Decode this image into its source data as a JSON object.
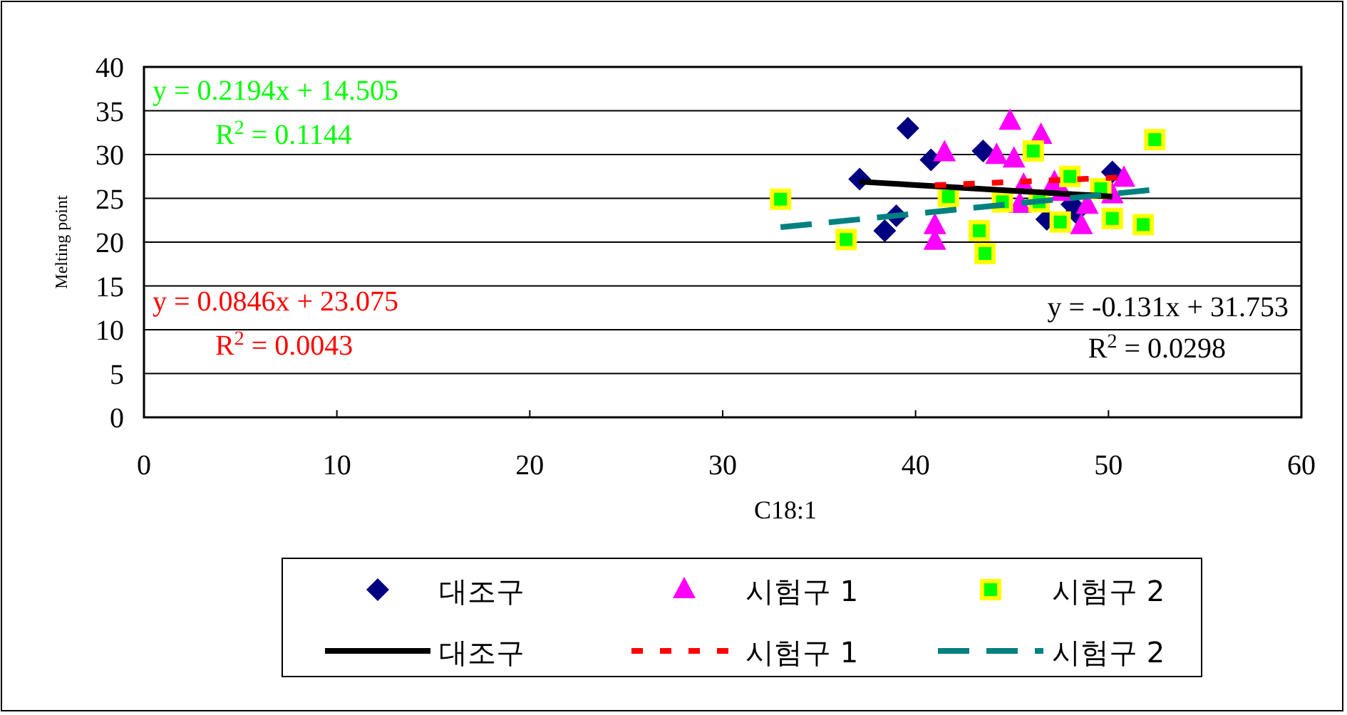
{
  "chart_data": {
    "type": "scatter",
    "xlabel": "C18:1",
    "ylabel": "Melting point",
    "xlim": [
      0,
      60
    ],
    "ylim": [
      0,
      40
    ],
    "xticks": [
      0,
      10,
      20,
      30,
      40,
      50,
      60
    ],
    "yticks": [
      0,
      5,
      10,
      15,
      20,
      25,
      30,
      35,
      40
    ],
    "grid": "y",
    "legend": "bottom",
    "annotations": [
      "y = 0.2194x + 14.505",
      "R$^{2}$ = 0.1144",
      "y = 0.0846x + 23.075",
      "R$^{2}$ = 0.0043",
      "y = -0.131x + 31.753",
      "R$^{2}$ = 0.0298"
    ],
    "series": [
      {
        "name": "대조구",
        "marker": "diamond",
        "color": "#000080",
        "x": [
          37.1,
          39.6,
          40.8,
          39.0,
          38.4,
          43.5,
          46.8,
          48.1,
          48.3,
          50.2
        ],
        "values": [
          27.2,
          33.0,
          29.4,
          23.0,
          21.3,
          30.4,
          22.6,
          24.3,
          23.4,
          28.0
        ]
      },
      {
        "name": "시험구 1",
        "marker": "triangle",
        "color": "#ff00ff",
        "x": [
          44.9,
          46.5,
          41.5,
          44.2,
          45.1,
          45.6,
          47.2,
          45.4,
          41.0,
          41.0,
          48.6,
          48.9,
          50.8,
          50.2,
          47.6
        ],
        "values": [
          33.8,
          32.2,
          30.2,
          29.9,
          29.5,
          26.5,
          26.8,
          24.3,
          21.9,
          20.1,
          21.9,
          24.2,
          27.3,
          25.4,
          25.7
        ]
      },
      {
        "name": "시험구 2",
        "marker": "square",
        "color": "#00ff00",
        "x": [
          33.0,
          36.4,
          41.7,
          43.3,
          43.6,
          44.5,
          46.1,
          46.4,
          47.5,
          48.0,
          49.6,
          50.2,
          51.8,
          52.4
        ],
        "values": [
          24.9,
          20.3,
          25.2,
          21.3,
          18.7,
          24.6,
          30.4,
          24.6,
          22.3,
          27.5,
          26.1,
          22.7,
          22.0,
          31.7
        ]
      },
      {
        "name": "대조구",
        "type": "line",
        "line_style": "solid",
        "color": "#000000",
        "x": [
          37.1,
          50.2
        ],
        "values": [
          26.9,
          25.2
        ]
      },
      {
        "name": "시험구 1",
        "type": "line",
        "line_style": "dotted",
        "color": "#ff0000",
        "x": [
          41.0,
          50.8
        ],
        "values": [
          26.5,
          27.4
        ]
      },
      {
        "name": "시험구 2",
        "type": "line",
        "line_style": "dashed",
        "color": "#008080",
        "x": [
          33.0,
          52.4
        ],
        "values": [
          21.7,
          26.0
        ]
      }
    ]
  }
}
